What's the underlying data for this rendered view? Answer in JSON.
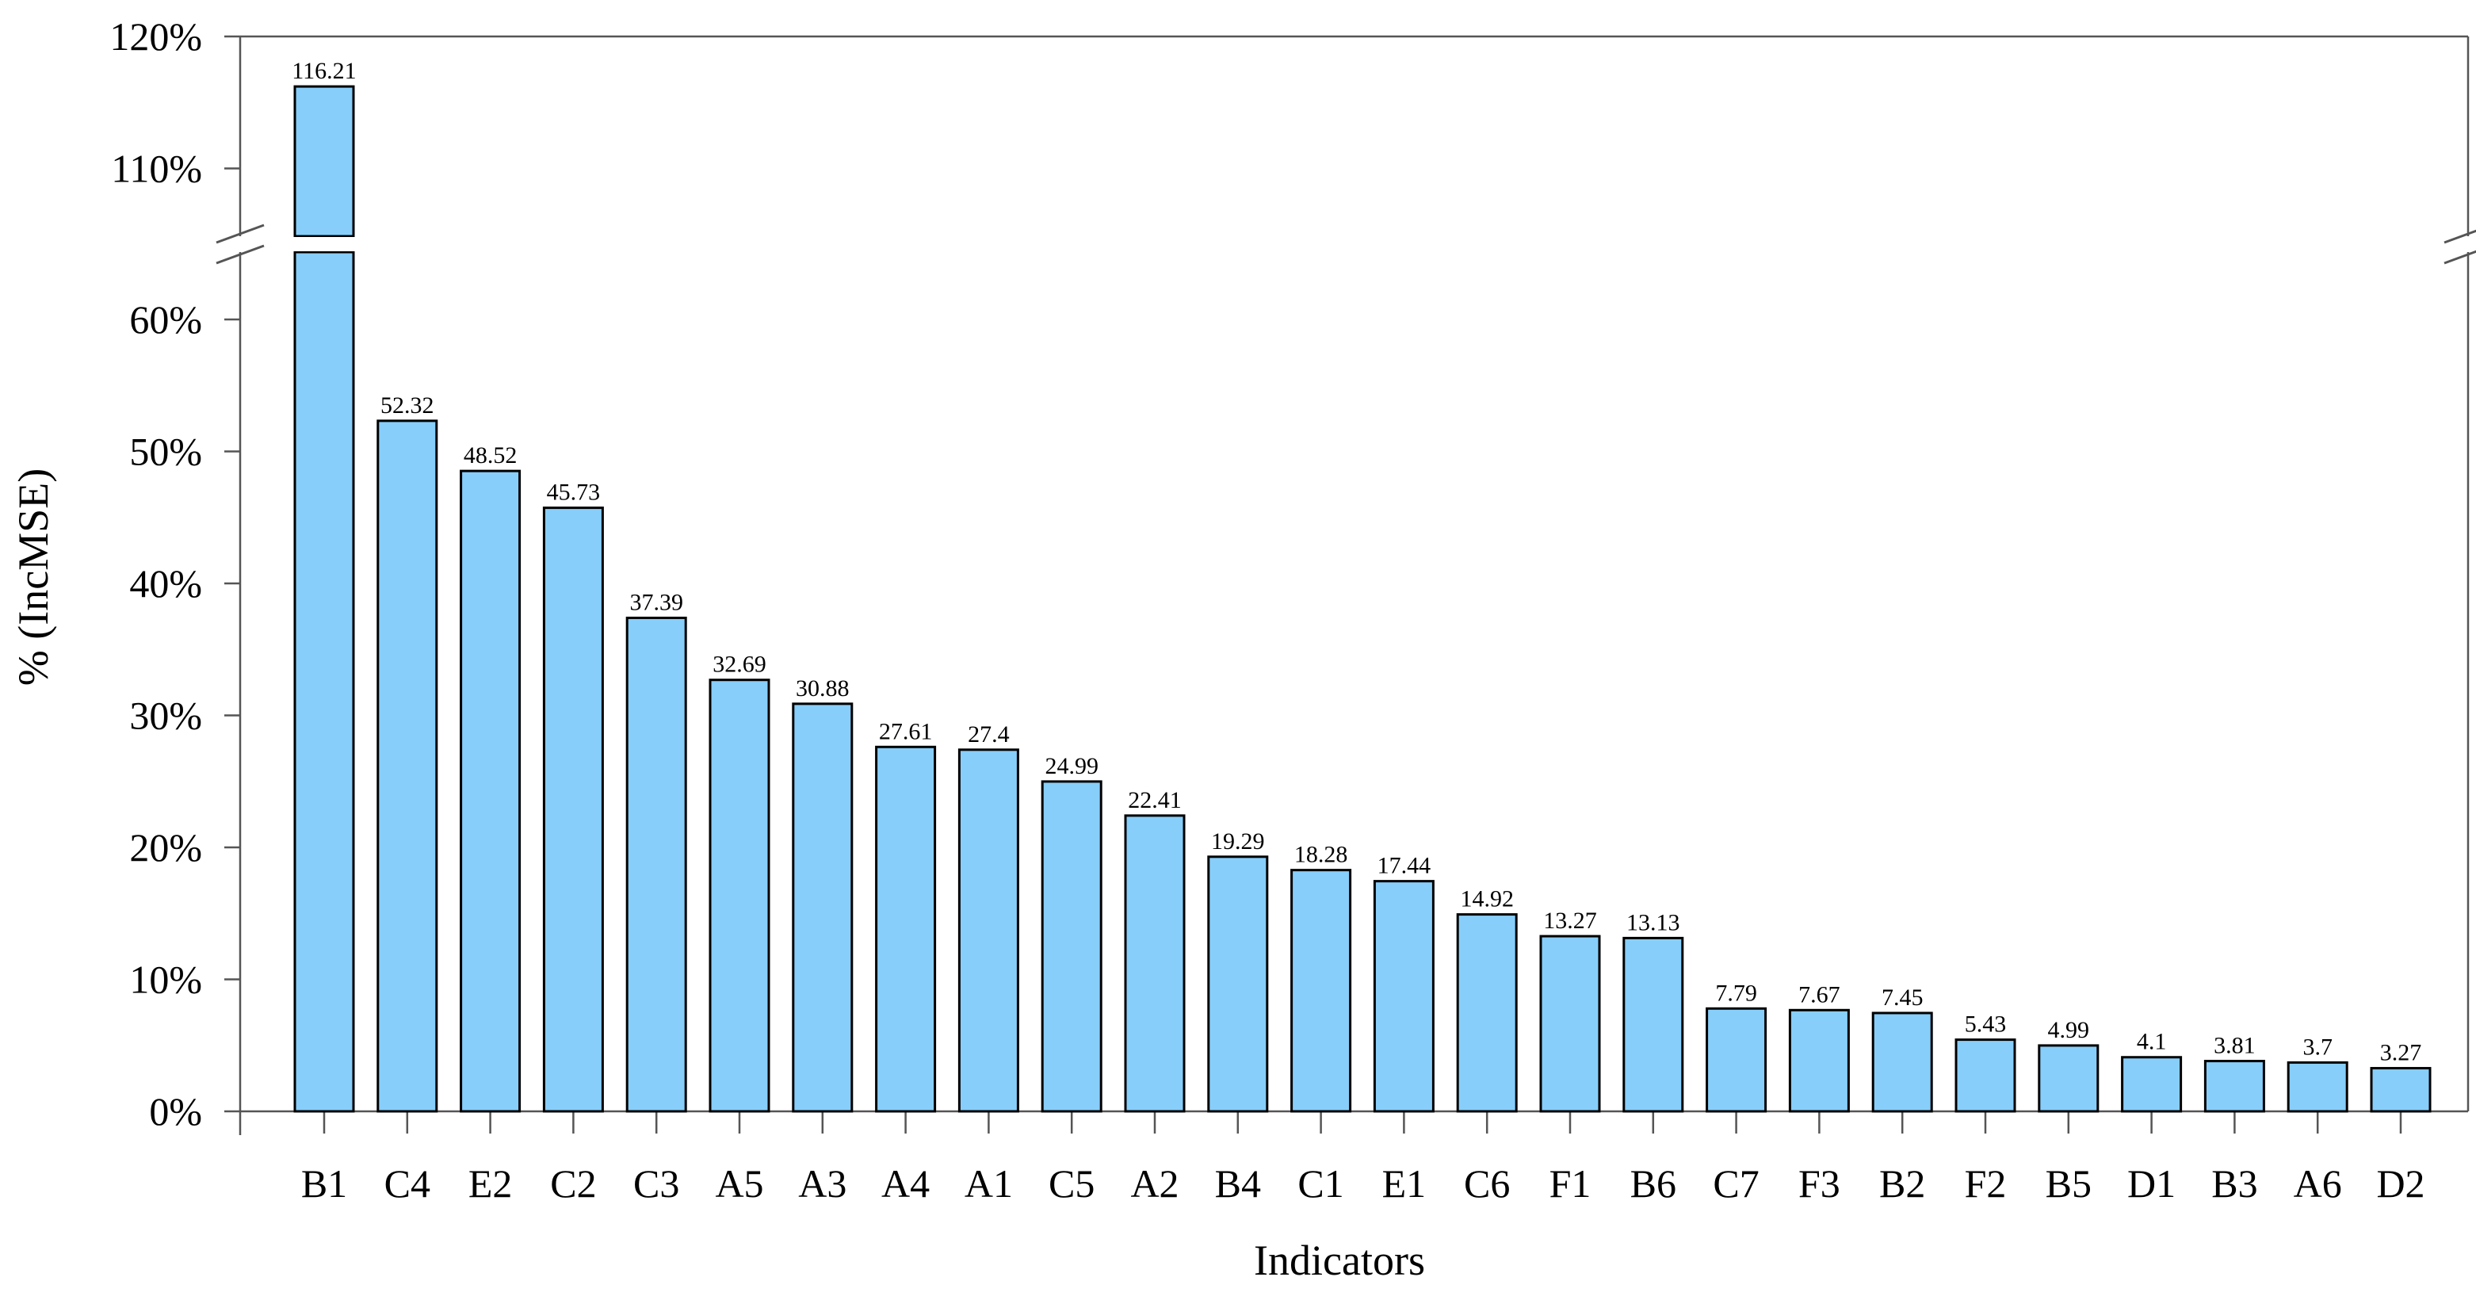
{
  "chart_data": {
    "type": "bar",
    "xlabel": "Indicators",
    "ylabel": "% (IncMSE)",
    "y_axis_break": true,
    "ylim_lower": [
      0,
      65
    ],
    "ylim_upper": [
      103,
      120
    ],
    "yticks_lower": [
      "0%",
      "10%",
      "20%",
      "30%",
      "40%",
      "50%",
      "60%"
    ],
    "yticks_upper": [
      "110%",
      "120%"
    ],
    "bar_color": "#87CEFA",
    "bar_edge_color": "#000000",
    "categories": [
      "B1",
      "C4",
      "E2",
      "C2",
      "C3",
      "A5",
      "A3",
      "A4",
      "A1",
      "C5",
      "A2",
      "B4",
      "C1",
      "E1",
      "C6",
      "F1",
      "B6",
      "C7",
      "F3",
      "B2",
      "F2",
      "B5",
      "D1",
      "B3",
      "A6",
      "D2"
    ],
    "values": [
      116.21,
      52.32,
      48.52,
      45.73,
      37.39,
      32.69,
      30.88,
      27.61,
      27.4,
      24.99,
      22.41,
      19.29,
      18.28,
      17.44,
      14.92,
      13.27,
      13.13,
      7.79,
      7.67,
      7.45,
      5.43,
      4.99,
      4.1,
      3.81,
      3.7,
      3.27
    ],
    "value_labels": [
      "116.21",
      "52.32",
      "48.52",
      "45.73",
      "37.39",
      "32.69",
      "30.88",
      "27.61",
      "27.4",
      "24.99",
      "22.41",
      "19.29",
      "18.28",
      "17.44",
      "14.92",
      "13.27",
      "13.13",
      "7.79",
      "7.67",
      "7.45",
      "5.43",
      "4.99",
      "4.1",
      "3.81",
      "3.7",
      "3.27"
    ]
  }
}
